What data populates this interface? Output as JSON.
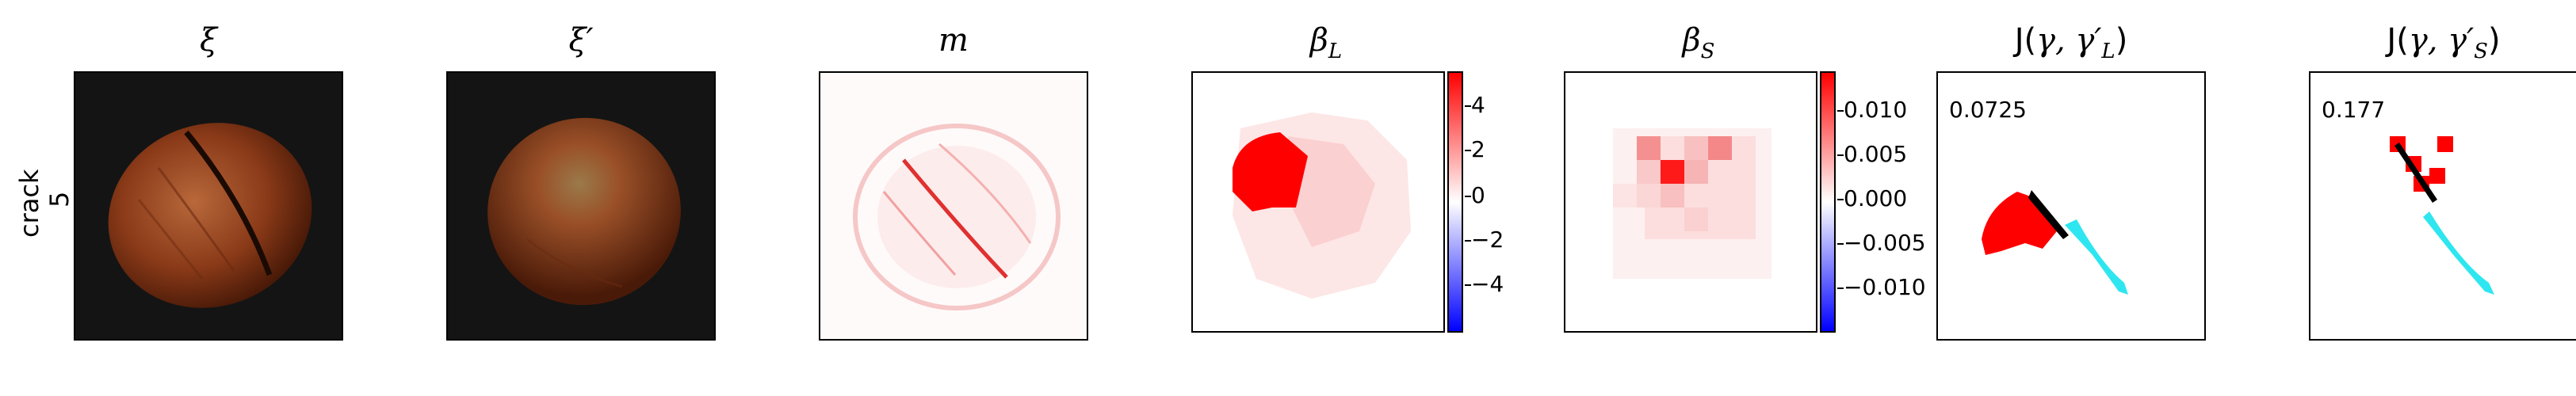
{
  "row_label": {
    "category": "crack",
    "index": "5"
  },
  "titles": {
    "xi": "ξ",
    "xi_prime": "ξ′",
    "m": "m",
    "beta_L": "β",
    "beta_L_sub": "L",
    "beta_S": "β",
    "beta_S_sub": "S",
    "jl_prefix": "J(",
    "jl_args": "γ, γ′",
    "jl_sub": "L",
    "jl_suffix": ")",
    "js_prefix": "J(",
    "js_args": "γ, γ′",
    "js_sub": "S",
    "js_suffix": ")"
  },
  "colorbar_L": {
    "ticks": [
      "4",
      "2",
      "0",
      "−2",
      "−4"
    ],
    "low_color": "#0000ff",
    "mid_color": "#ffffff",
    "high_color": "#ff0000"
  },
  "colorbar_S": {
    "ticks": [
      "0.010",
      "0.005",
      "0.000",
      "−0.005",
      "−0.010"
    ],
    "low_color": "#0000ff",
    "mid_color": "#ffffff",
    "high_color": "#ff0000"
  },
  "j_values": {
    "L": "0.0725",
    "S": "0.177"
  },
  "colors": {
    "nut_dark": "#5a2410",
    "nut_light": "#a85a30",
    "background_dark": "#141414",
    "heat_red": "#ff0000",
    "cyan": "#2ee6f0"
  }
}
